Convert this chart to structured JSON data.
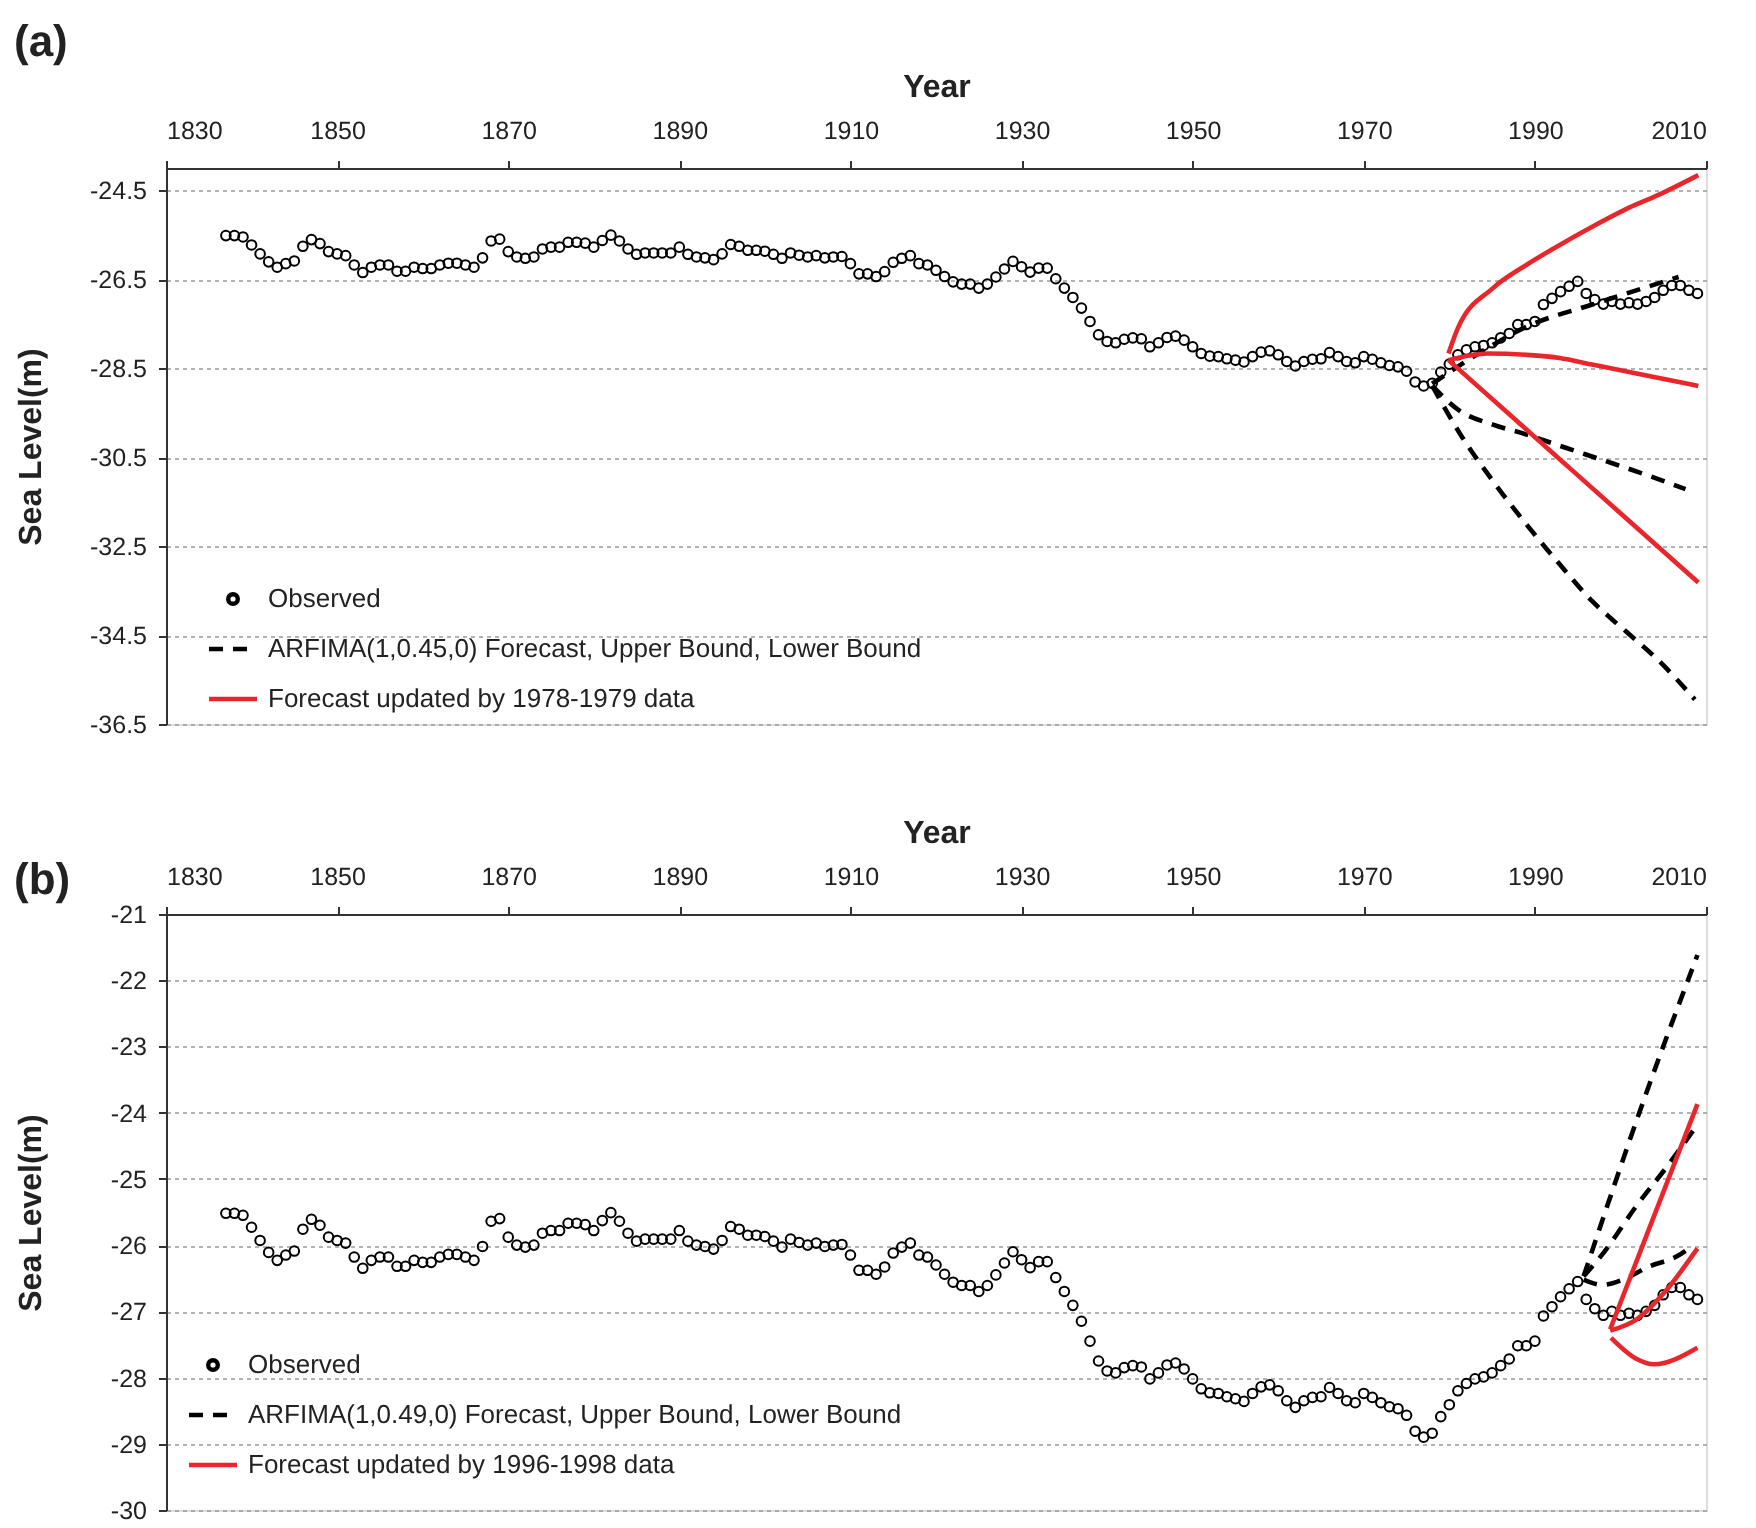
{
  "chart_data": [
    {
      "type": "scatter",
      "title": "(a)",
      "xlabel": "Year",
      "ylabel": "Sea Level(m)",
      "xlim": [
        1830,
        2010
      ],
      "xticks": [
        1830,
        1850,
        1870,
        1890,
        1910,
        1930,
        1950,
        1970,
        1990,
        2010
      ],
      "ylim": [
        -36.5,
        -24
      ],
      "yticks": [
        -36.5,
        -34.5,
        -32.5,
        -30.5,
        -28.5,
        -26.5,
        -24.5
      ],
      "grid": "y",
      "legend": "bottom left",
      "series": [
        {
          "name": "Observed",
          "color": "#000000",
          "marker": "circle",
          "x": [
            1837,
            1838,
            1839,
            1840,
            1841,
            1842,
            1843,
            1844,
            1845,
            1846,
            1847,
            1848,
            1849,
            1850,
            1851,
            1852,
            1853,
            1854,
            1855,
            1856,
            1857,
            1858,
            1859,
            1860,
            1861,
            1862,
            1863,
            1864,
            1865,
            1866,
            1867,
            1868,
            1869,
            1870,
            1871,
            1872,
            1873,
            1874,
            1875,
            1876,
            1877,
            1878,
            1879,
            1880,
            1881,
            1882,
            1883,
            1884,
            1885,
            1886,
            1887,
            1888,
            1889,
            1890,
            1891,
            1892,
            1893,
            1894,
            1895,
            1896,
            1897,
            1898,
            1899,
            1900,
            1901,
            1902,
            1903,
            1904,
            1905,
            1906,
            1907,
            1908,
            1909,
            1910,
            1911,
            1912,
            1913,
            1914,
            1915,
            1916,
            1917,
            1918,
            1919,
            1920,
            1921,
            1922,
            1923,
            1924,
            1925,
            1926,
            1927,
            1928,
            1929,
            1930,
            1931,
            1932,
            1933,
            1934,
            1935,
            1936,
            1937,
            1938,
            1939,
            1940,
            1941,
            1942,
            1943,
            1944,
            1945,
            1946,
            1947,
            1948,
            1949,
            1950,
            1951,
            1952,
            1953,
            1954,
            1955,
            1956,
            1957,
            1958,
            1959,
            1960,
            1961,
            1962,
            1963,
            1964,
            1965,
            1966,
            1967,
            1968,
            1969,
            1970,
            1971,
            1972,
            1973,
            1974,
            1975,
            1976,
            1977,
            1978,
            1979,
            1980,
            1981,
            1982,
            1983,
            1984,
            1985,
            1986,
            1987,
            1988,
            1989,
            1990,
            1991,
            1992,
            1993,
            1994,
            1995,
            1996,
            1997,
            1998,
            1999,
            2000,
            2001,
            2002,
            2003,
            2004,
            2005,
            2006,
            2007,
            2008,
            2009
          ],
          "values": [
            -25.52,
            -25.52,
            -25.55,
            -25.73,
            -25.93,
            -26.11,
            -26.23,
            -26.15,
            -26.09,
            -25.76,
            -25.61,
            -25.7,
            -25.88,
            -25.93,
            -25.97,
            -26.18,
            -26.35,
            -26.23,
            -26.18,
            -26.18,
            -26.32,
            -26.32,
            -26.23,
            -26.26,
            -26.26,
            -26.18,
            -26.14,
            -26.14,
            -26.18,
            -26.23,
            -26.02,
            -25.64,
            -25.6,
            -25.88,
            -26.0,
            -26.03,
            -26.0,
            -25.82,
            -25.78,
            -25.78,
            -25.67,
            -25.67,
            -25.69,
            -25.78,
            -25.63,
            -25.51,
            -25.64,
            -25.82,
            -25.94,
            -25.91,
            -25.91,
            -25.91,
            -25.91,
            -25.78,
            -25.94,
            -26.0,
            -26.02,
            -26.06,
            -25.93,
            -25.72,
            -25.76,
            -25.85,
            -25.85,
            -25.87,
            -25.94,
            -26.03,
            -25.91,
            -25.96,
            -26.0,
            -25.97,
            -26.02,
            -26.0,
            -25.99,
            -26.15,
            -26.38,
            -26.38,
            -26.44,
            -26.33,
            -26.12,
            -26.03,
            -25.97,
            -26.15,
            -26.18,
            -26.3,
            -26.44,
            -26.56,
            -26.61,
            -26.61,
            -26.7,
            -26.61,
            -26.45,
            -26.27,
            -26.1,
            -26.22,
            -26.34,
            -26.25,
            -26.25,
            -26.49,
            -26.7,
            -26.91,
            -27.15,
            -27.45,
            -27.75,
            -27.9,
            -27.93,
            -27.85,
            -27.82,
            -27.84,
            -28.02,
            -27.93,
            -27.81,
            -27.78,
            -27.87,
            -28.02,
            -28.17,
            -28.23,
            -28.24,
            -28.29,
            -28.32,
            -28.36,
            -28.24,
            -28.14,
            -28.11,
            -28.2,
            -28.35,
            -28.45,
            -28.35,
            -28.3,
            -28.29,
            -28.15,
            -28.24,
            -28.35,
            -28.38,
            -28.24,
            -28.3,
            -28.38,
            -28.44,
            -28.47,
            -28.57,
            -28.81,
            -28.9,
            -28.84,
            -28.59,
            -28.41,
            -28.2,
            -28.09,
            -28.02,
            -27.99,
            -27.93,
            -27.82,
            -27.72,
            -27.52,
            -27.52,
            -27.45,
            -27.07,
            -26.93,
            -26.78,
            -26.66,
            -26.55,
            -26.82,
            -26.96,
            -27.06,
            -27.0,
            -27.06,
            -27.03,
            -27.06,
            -27.0,
            -26.91,
            -26.75,
            -26.64,
            -26.64,
            -26.75,
            -26.82
          ]
        },
        {
          "name": "ARFIMA(1,0.45,0) Forecast, Upper Bound, Lower Bound",
          "type": "line",
          "color": "#000000",
          "line_style": "dashed",
          "x": [
            1978,
            1981.3,
            1985.1,
            1989,
            1993.6,
            1998.3,
            2002.9,
            2007.6
          ],
          "values": [
            -28.9,
            -29.47,
            -29.77,
            -29.99,
            -30.29,
            -30.59,
            -30.89,
            -31.22
          ]
        },
        {
          "type": "line",
          "color": "#000000",
          "line_style": "dashed",
          "x": [
            1978,
            1983.6,
            1989,
            1996.7,
            2006.8
          ],
          "values": [
            -28.85,
            -28.15,
            -27.57,
            -27.07,
            -26.45
          ]
        },
        {
          "type": "line",
          "color": "#000000",
          "line_style": "dashed",
          "x": [
            1978,
            1981.3,
            1985.1,
            1989,
            1992.9,
            1996.7,
            2000.6,
            2004.5,
            2008.7
          ],
          "values": [
            -28.9,
            -29.99,
            -31.04,
            -32.01,
            -32.91,
            -33.74,
            -34.41,
            -35.08,
            -35.95
          ]
        },
        {
          "name": "Forecast updated by 1978-1979 data",
          "type": "line",
          "color": "#e8262b",
          "line_style": "solid",
          "x": [
            1979.9,
            1981,
            1985.1,
            1989,
            1992.9,
            1996.7,
            2000.6,
            2004.5,
            2009.1
          ],
          "values": [
            -28.17,
            -27.6,
            -26.7,
            -26.18,
            -25.73,
            -25.32,
            -24.93,
            -24.6,
            -24.16
          ]
        },
        {
          "type": "line",
          "color": "#e8262b",
          "line_style": "solid",
          "x": [
            1979.9,
            1984.5,
            1989,
            1992.9,
            1996.7,
            2000.6,
            2004.5,
            2009.1
          ],
          "values": [
            -28.32,
            -28.17,
            -28.2,
            -28.27,
            -28.42,
            -28.57,
            -28.72,
            -28.9
          ]
        },
        {
          "type": "line",
          "color": "#e8262b",
          "line_style": "solid",
          "x": [
            1979.9,
            1994.5,
            2009.1
          ],
          "values": [
            -28.32,
            -30.82,
            -33.32
          ]
        }
      ]
    },
    {
      "type": "scatter",
      "title": "(b)",
      "xlabel": "Year",
      "ylabel": "Sea Level(m)",
      "xlim": [
        1830,
        2010
      ],
      "xticks": [
        1830,
        1850,
        1870,
        1890,
        1910,
        1930,
        1950,
        1970,
        1990,
        2010
      ],
      "ylim": [
        -30,
        -21
      ],
      "yticks": [
        -30,
        -29,
        -28,
        -27,
        -26,
        -25,
        -24,
        -23,
        -22,
        -21
      ],
      "grid": "y",
      "legend": "bottom left",
      "series": [
        {
          "name": "Observed",
          "color": "#000000",
          "marker": "circle",
          "x": [
            1837,
            1838,
            1839,
            1840,
            1841,
            1842,
            1843,
            1844,
            1845,
            1846,
            1847,
            1848,
            1849,
            1850,
            1851,
            1852,
            1853,
            1854,
            1855,
            1856,
            1857,
            1858,
            1859,
            1860,
            1861,
            1862,
            1863,
            1864,
            1865,
            1866,
            1867,
            1868,
            1869,
            1870,
            1871,
            1872,
            1873,
            1874,
            1875,
            1876,
            1877,
            1878,
            1879,
            1880,
            1881,
            1882,
            1883,
            1884,
            1885,
            1886,
            1887,
            1888,
            1889,
            1890,
            1891,
            1892,
            1893,
            1894,
            1895,
            1896,
            1897,
            1898,
            1899,
            1900,
            1901,
            1902,
            1903,
            1904,
            1905,
            1906,
            1907,
            1908,
            1909,
            1910,
            1911,
            1912,
            1913,
            1914,
            1915,
            1916,
            1917,
            1918,
            1919,
            1920,
            1921,
            1922,
            1923,
            1924,
            1925,
            1926,
            1927,
            1928,
            1929,
            1930,
            1931,
            1932,
            1933,
            1934,
            1935,
            1936,
            1937,
            1938,
            1939,
            1940,
            1941,
            1942,
            1943,
            1944,
            1945,
            1946,
            1947,
            1948,
            1949,
            1950,
            1951,
            1952,
            1953,
            1954,
            1955,
            1956,
            1957,
            1958,
            1959,
            1960,
            1961,
            1962,
            1963,
            1964,
            1965,
            1966,
            1967,
            1968,
            1969,
            1970,
            1971,
            1972,
            1973,
            1974,
            1975,
            1976,
            1977,
            1978,
            1979,
            1980,
            1981,
            1982,
            1983,
            1984,
            1985,
            1986,
            1987,
            1988,
            1989,
            1990,
            1991,
            1992,
            1993,
            1994,
            1995,
            1996,
            1997,
            1998,
            1999,
            2000,
            2001,
            2002,
            2003,
            2004,
            2005,
            2006,
            2007,
            2008,
            2009
          ],
          "values": [
            -25.52,
            -25.52,
            -25.55,
            -25.73,
            -25.93,
            -26.11,
            -26.23,
            -26.15,
            -26.09,
            -25.76,
            -25.61,
            -25.7,
            -25.88,
            -25.93,
            -25.97,
            -26.18,
            -26.35,
            -26.23,
            -26.18,
            -26.18,
            -26.32,
            -26.32,
            -26.23,
            -26.26,
            -26.26,
            -26.18,
            -26.14,
            -26.14,
            -26.18,
            -26.23,
            -26.02,
            -25.64,
            -25.6,
            -25.88,
            -26.0,
            -26.03,
            -26.0,
            -25.82,
            -25.78,
            -25.78,
            -25.67,
            -25.67,
            -25.69,
            -25.78,
            -25.63,
            -25.51,
            -25.64,
            -25.82,
            -25.94,
            -25.91,
            -25.91,
            -25.91,
            -25.91,
            -25.78,
            -25.94,
            -26.0,
            -26.02,
            -26.06,
            -25.93,
            -25.72,
            -25.76,
            -25.85,
            -25.85,
            -25.87,
            -25.94,
            -26.03,
            -25.91,
            -25.96,
            -26.0,
            -25.97,
            -26.02,
            -26.0,
            -25.99,
            -26.15,
            -26.38,
            -26.38,
            -26.44,
            -26.33,
            -26.12,
            -26.03,
            -25.97,
            -26.15,
            -26.18,
            -26.3,
            -26.44,
            -26.56,
            -26.61,
            -26.61,
            -26.7,
            -26.61,
            -26.45,
            -26.27,
            -26.1,
            -26.22,
            -26.34,
            -26.25,
            -26.25,
            -26.49,
            -26.7,
            -26.91,
            -27.15,
            -27.45,
            -27.75,
            -27.9,
            -27.93,
            -27.85,
            -27.82,
            -27.84,
            -28.02,
            -27.93,
            -27.81,
            -27.78,
            -27.87,
            -28.02,
            -28.17,
            -28.23,
            -28.24,
            -28.29,
            -28.32,
            -28.36,
            -28.24,
            -28.14,
            -28.11,
            -28.2,
            -28.35,
            -28.45,
            -28.35,
            -28.3,
            -28.29,
            -28.15,
            -28.24,
            -28.35,
            -28.38,
            -28.24,
            -28.3,
            -28.38,
            -28.44,
            -28.47,
            -28.57,
            -28.81,
            -28.9,
            -28.84,
            -28.59,
            -28.41,
            -28.2,
            -28.09,
            -28.02,
            -27.99,
            -27.93,
            -27.82,
            -27.72,
            -27.52,
            -27.52,
            -27.45,
            -27.07,
            -26.93,
            -26.78,
            -26.66,
            -26.55,
            -26.82,
            -26.96,
            -27.06,
            -27.0,
            -27.06,
            -27.03,
            -27.06,
            -27.0,
            -26.91,
            -26.75,
            -26.64,
            -26.64,
            -26.75,
            -26.82
          ]
        },
        {
          "name": "ARFIMA(1,0.49,0) Forecast, Upper Bound, Lower Bound",
          "type": "line",
          "color": "#000000",
          "line_style": "dashed",
          "x": [
            1995.7,
            1998,
            2001.8,
            2005.7,
            2008.5
          ],
          "values": [
            -26.47,
            -26.12,
            -25.42,
            -24.77,
            -24.27
          ]
        },
        {
          "type": "line",
          "color": "#000000",
          "line_style": "dashed",
          "x": [
            1995.7,
            2002.7,
            2009
          ],
          "values": [
            -26.47,
            -23.82,
            -21.62
          ]
        },
        {
          "type": "line",
          "color": "#000000",
          "line_style": "dashed",
          "x": [
            1995.7,
            1997.9,
            2000.3,
            2003.4,
            2006.6,
            2008.5
          ],
          "values": [
            -26.52,
            -26.6,
            -26.52,
            -26.32,
            -26.17,
            -26.0
          ]
        },
        {
          "name": "Forecast updated by 1996-1998 data",
          "type": "line",
          "color": "#e8262b",
          "line_style": "solid",
          "x": [
            1998.8,
            2003.9,
            2009
          ],
          "values": [
            -27.27,
            -25.57,
            -23.87
          ]
        },
        {
          "type": "line",
          "color": "#e8262b",
          "line_style": "solid",
          "x": [
            1998.8,
            2001.9,
            2005.1,
            2009
          ],
          "values": [
            -27.29,
            -27.12,
            -26.72,
            -26.05
          ]
        },
        {
          "type": "line",
          "color": "#e8262b",
          "line_style": "solid",
          "x": [
            1998.9,
            2001.9,
            2003.9,
            2009
          ],
          "values": [
            -27.4,
            -27.72,
            -27.8,
            -27.55
          ]
        }
      ]
    }
  ]
}
